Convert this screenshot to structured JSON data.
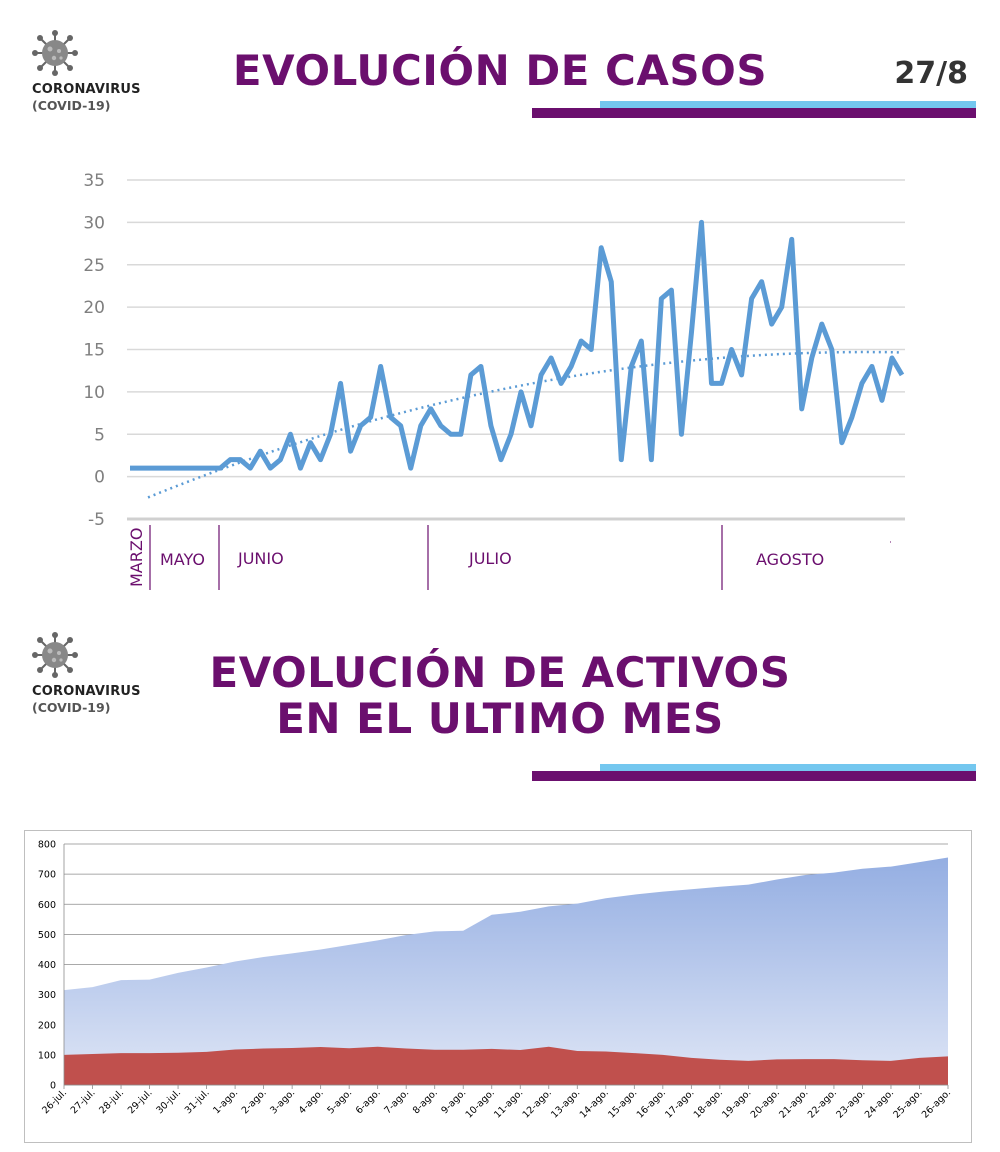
{
  "header1": {
    "logo_line1": "CORONAVIRUS",
    "logo_line2": "(COVID-19)",
    "title": "EVOLUCIÓN DE CASOS",
    "date": "27/8",
    "virus_icon": "coronavirus-icon"
  },
  "header2": {
    "logo_line1": "CORONAVIRUS",
    "logo_line2": "(COVID-19)",
    "title_line1": "EVOLUCIÓN DE ACTIVOS",
    "title_line2": "EN EL ULTIMO MES",
    "virus_icon": "coronavirus-icon"
  },
  "colors": {
    "brand_purple": "#6b0f6e",
    "accent_blue": "#74c7ef",
    "cases_line": "#5b9bd5",
    "active_top": "#9db4e3",
    "active_bottom": "#c0504d"
  },
  "chart_data": [
    {
      "type": "line",
      "title": "",
      "xlabel": "",
      "ylabel": "",
      "ylim": [
        -5,
        35
      ],
      "yticks": [
        35,
        30,
        25,
        20,
        15,
        10,
        5,
        0,
        -5
      ],
      "grid": true,
      "trendline": "dotted",
      "month_labels": [
        "MARZO",
        "MAYO",
        "JUNIO",
        "JULIO",
        "AGOSTO"
      ],
      "series": [
        {
          "values": [
            1,
            1,
            1,
            1,
            1,
            1,
            1,
            1,
            1,
            1,
            2,
            2,
            1,
            3,
            1,
            2,
            5,
            1,
            4,
            2,
            5,
            11,
            3,
            6,
            7,
            13,
            7,
            6,
            1,
            6,
            8,
            6,
            5,
            5,
            12,
            13,
            6,
            2,
            5,
            10,
            6,
            12,
            14,
            11,
            13,
            16,
            15,
            27,
            23,
            2,
            13,
            16,
            2,
            21,
            22,
            5,
            17,
            30,
            11,
            11,
            15,
            12,
            21,
            23,
            18,
            20,
            28,
            8,
            14,
            18,
            15,
            4,
            7,
            11,
            13,
            9,
            14,
            12
          ]
        }
      ]
    },
    {
      "type": "area",
      "title": "",
      "xlabel": "",
      "ylabel": "",
      "ylim": [
        0,
        800
      ],
      "yticks": [
        800,
        700,
        600,
        500,
        400,
        300,
        200,
        100,
        0
      ],
      "grid": true,
      "categories": [
        "26-jul.",
        "27-jul.",
        "28-jul.",
        "29-jul.",
        "30-jul.",
        "31-jul.",
        "1-ago.",
        "2-ago.",
        "3-ago.",
        "4-ago.",
        "5-ago.",
        "6-ago.",
        "7-ago.",
        "8-ago.",
        "9-ago.",
        "10-ago.",
        "11-ago.",
        "12-ago.",
        "13-ago.",
        "14-ago.",
        "15-ago.",
        "16-ago.",
        "17-ago.",
        "18-ago.",
        "19-ago.",
        "20-ago.",
        "21-ago.",
        "22-ago.",
        "23-ago.",
        "24-ago.",
        "25-ago.",
        "26-ago."
      ],
      "series": [
        {
          "values": [
            315,
            325,
            348,
            350,
            372,
            390,
            410,
            425,
            437,
            450,
            465,
            480,
            498,
            510,
            512,
            565,
            575,
            593,
            602,
            620,
            632,
            642,
            650,
            658,
            665,
            682,
            697,
            705,
            718,
            725,
            740,
            755
          ]
        },
        {
          "values": [
            100,
            103,
            106,
            106,
            107,
            110,
            118,
            121,
            123,
            126,
            122,
            127,
            121,
            117,
            117,
            120,
            116,
            127,
            113,
            111,
            106,
            100,
            90,
            84,
            80,
            85,
            86,
            86,
            82,
            80,
            90,
            95
          ]
        }
      ]
    }
  ]
}
